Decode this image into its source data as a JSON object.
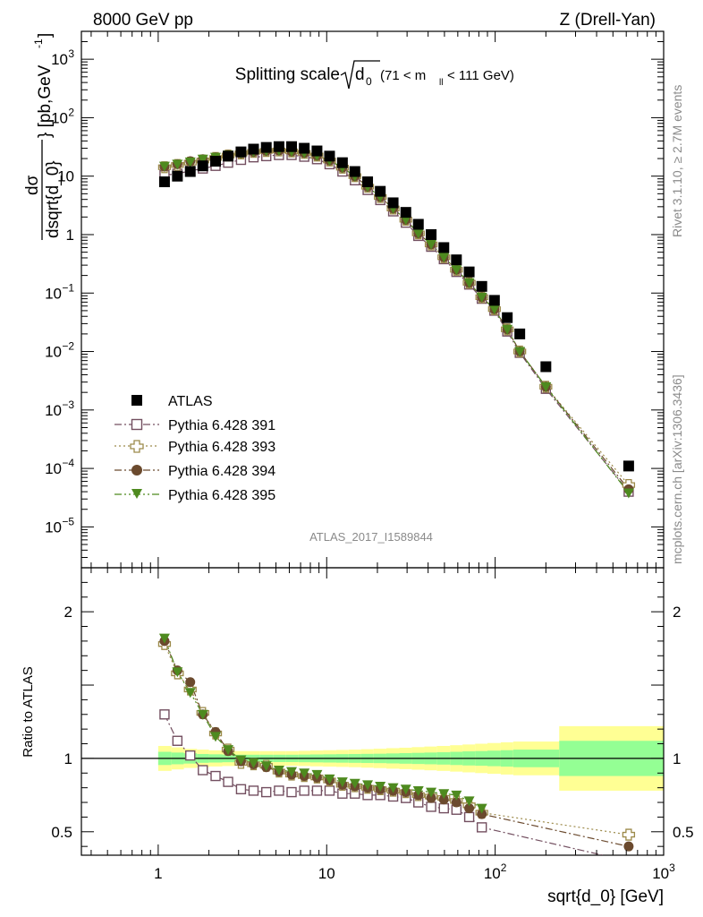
{
  "header": {
    "left": "8000 GeV pp",
    "right": "Z (Drell-Yan)"
  },
  "side_text": {
    "rivet": "Rivet 3.1.10, ≥ 2.7M events",
    "mcplots": "mcplots.cern.ch [arXiv:1306.3436]"
  },
  "analysis_id": "ATLAS_2017_I1589844",
  "colors": {
    "atlas": "#000000",
    "p391": "#734f60",
    "p393": "#9c8a4a",
    "p394": "#6b4a2e",
    "p395": "#4e8a1f",
    "band_stat": "#94ff94",
    "band_tot": "#ffff94"
  },
  "chart_data": [
    {
      "type": "scatter",
      "title": "Splitting scale √d0 (71 < m_ll < 111 GeV)",
      "title_parts": {
        "main": "Splitting scale",
        "sym": "d",
        "sub": "0",
        "range": "(71 < m",
        "range_sub": "ll",
        "range_end": " < 111 GeV)"
      },
      "ylabel": "dσ/dsqrt{d_0} [pb,GeV^-1]",
      "ylabel_parts": {
        "num": "dσ",
        "den": "dsqrt{d_0}",
        "unit_a": "} [pb,GeV",
        "unit_exp": "-1",
        "unit_b": "]"
      },
      "xscale": "log",
      "yscale": "log",
      "xlim": [
        0.35,
        1000
      ],
      "ylim": [
        2e-06,
        3000
      ],
      "legend": "bottom-left",
      "y_ticks": [
        {
          "v": 1000.0,
          "b": "10",
          "e": "3"
        },
        {
          "v": 100.0,
          "b": "10",
          "e": "2"
        },
        {
          "v": 10,
          "b": "10",
          "e": ""
        },
        {
          "v": 1,
          "b": "1",
          "e": ""
        },
        {
          "v": 0.1,
          "b": "10",
          "e": "−1"
        },
        {
          "v": 0.01,
          "b": "10",
          "e": "−2"
        },
        {
          "v": 0.001,
          "b": "10",
          "e": "−3"
        },
        {
          "v": 0.0001,
          "b": "10",
          "e": "−4"
        },
        {
          "v": 1e-05,
          "b": "10",
          "e": "−5"
        }
      ],
      "series": [
        {
          "name": "ATLAS",
          "marker": "square-filled",
          "x": [
            1.09,
            1.3,
            1.55,
            1.84,
            2.19,
            2.6,
            3.1,
            3.68,
            4.38,
            5.21,
            6.19,
            7.36,
            8.76,
            10.4,
            12.4,
            14.7,
            17.5,
            20.8,
            24.8,
            29.5,
            35.0,
            41.7,
            49.6,
            58.9,
            70.1,
            83.3,
            99,
            118,
            140,
            200,
            620
          ],
          "y": [
            8.0,
            10.0,
            12.0,
            15.0,
            18.0,
            22.0,
            26.0,
            29.0,
            31.0,
            32.0,
            32.0,
            30.0,
            27.0,
            22.0,
            17.0,
            12.0,
            8.0,
            5.5,
            3.5,
            2.4,
            1.5,
            1.0,
            0.6,
            0.37,
            0.23,
            0.13,
            0.075,
            0.038,
            0.02,
            0.0055,
            0.00011
          ]
        },
        {
          "name": "Pythia 6.428 391",
          "marker": "square-open",
          "x": [
            1.09,
            1.3,
            1.55,
            1.84,
            2.19,
            2.6,
            3.1,
            3.68,
            4.38,
            5.21,
            6.19,
            7.36,
            8.76,
            10.4,
            12.4,
            14.7,
            17.5,
            20.8,
            24.8,
            29.5,
            35.0,
            41.7,
            49.6,
            58.9,
            70.1,
            83.3,
            99,
            118,
            140,
            200,
            620
          ],
          "y": [
            10.4,
            11.0,
            12.3,
            13.5,
            15.0,
            17.0,
            19.0,
            21.0,
            22.0,
            23.0,
            23.0,
            21.5,
            19.5,
            16.0,
            12.0,
            8.5,
            5.8,
            3.9,
            2.5,
            1.6,
            0.95,
            0.62,
            0.38,
            0.23,
            0.14,
            0.08,
            0.05,
            0.022,
            0.0095,
            0.0023,
            4e-05
          ]
        },
        {
          "name": "Pythia 6.428 393",
          "marker": "cross-open",
          "x": [
            1.09,
            1.3,
            1.55,
            1.84,
            2.19,
            2.6,
            3.1,
            3.68,
            4.38,
            5.21,
            6.19,
            7.36,
            8.76,
            10.4,
            12.4,
            14.7,
            17.5,
            20.8,
            24.8,
            29.5,
            35.0,
            41.7,
            49.6,
            58.9,
            70.1,
            83.3,
            99,
            118,
            140,
            200,
            620
          ],
          "y": [
            14.2,
            15.5,
            17.0,
            18.5,
            20.5,
            22.5,
            24.5,
            26.0,
            27.0,
            27.5,
            26.5,
            25.0,
            22.5,
            18.5,
            14.0,
            10.0,
            6.6,
            4.4,
            2.8,
            1.8,
            1.05,
            0.68,
            0.41,
            0.25,
            0.15,
            0.085,
            0.053,
            0.024,
            0.01,
            0.0025,
            5.2e-05
          ]
        },
        {
          "name": "Pythia 6.428 394",
          "marker": "circle-filled",
          "x": [
            1.09,
            1.3,
            1.55,
            1.84,
            2.19,
            2.6,
            3.1,
            3.68,
            4.38,
            5.21,
            6.19,
            7.36,
            8.76,
            10.4,
            12.4,
            14.7,
            17.5,
            20.8,
            24.8,
            29.5,
            35.0,
            41.7,
            49.6,
            58.9,
            70.1,
            83.3,
            99,
            118,
            140,
            200,
            620
          ],
          "y": [
            14.5,
            16.0,
            18.0,
            19.5,
            21.0,
            23.0,
            24.5,
            26.0,
            27.0,
            27.5,
            26.5,
            25.0,
            22.5,
            18.5,
            14.0,
            10.0,
            6.6,
            4.4,
            2.8,
            1.8,
            1.05,
            0.68,
            0.41,
            0.25,
            0.15,
            0.085,
            0.053,
            0.024,
            0.01,
            0.0025,
            4.4e-05
          ]
        },
        {
          "name": "Pythia 6.428 395",
          "marker": "triangle-down-filled",
          "x": [
            1.09,
            1.3,
            1.55,
            1.84,
            2.19,
            2.6,
            3.1,
            3.68,
            4.38,
            5.21,
            6.19,
            7.36,
            8.76,
            10.4,
            12.4,
            14.7,
            17.5,
            20.8,
            24.8,
            29.5,
            35.0,
            41.7,
            49.6,
            58.9,
            70.1,
            83.3,
            99,
            118,
            140,
            200,
            620
          ],
          "y": [
            14.8,
            16.0,
            17.5,
            19.5,
            21.0,
            23.0,
            24.5,
            26.0,
            27.0,
            27.5,
            26.5,
            25.0,
            22.5,
            18.5,
            14.0,
            10.0,
            6.6,
            4.4,
            2.8,
            1.8,
            1.05,
            0.68,
            0.41,
            0.25,
            0.15,
            0.085,
            0.053,
            0.024,
            0.01,
            0.0025,
            3.8e-05
          ]
        }
      ]
    },
    {
      "type": "line",
      "ylabel": "Ratio to ATLAS",
      "xlabel": "sqrt{d_0} [GeV]",
      "xscale": "log",
      "xlim": [
        0.35,
        1000
      ],
      "ylim": [
        0.34,
        2.3
      ],
      "x_ticks": [
        {
          "v": 1,
          "b": "1",
          "e": ""
        },
        {
          "v": 10,
          "b": "10",
          "e": ""
        },
        {
          "v": 100,
          "b": "10",
          "e": "2"
        },
        {
          "v": 1000,
          "b": "10",
          "e": "3"
        }
      ],
      "y_ticks": [
        {
          "v": 0.5,
          "t": "0.5"
        },
        {
          "v": 1,
          "t": "1"
        },
        {
          "v": 2,
          "t": "2"
        }
      ],
      "bands": {
        "edges": [
          1.0,
          1.2,
          1.42,
          1.7,
          2.0,
          2.4,
          2.85,
          3.4,
          4.0,
          4.8,
          5.7,
          6.8,
          8.0,
          9.5,
          11.4,
          13.5,
          16.0,
          19.0,
          22.6,
          27.0,
          32.0,
          38.0,
          45.0,
          54.0,
          64.0,
          76.0,
          90.0,
          108.0,
          128.0,
          240.0,
          1000.0
        ],
        "tot": [
          0.085,
          0.075,
          0.065,
          0.06,
          0.055,
          0.052,
          0.05,
          0.05,
          0.05,
          0.05,
          0.05,
          0.052,
          0.054,
          0.056,
          0.058,
          0.06,
          0.063,
          0.066,
          0.07,
          0.073,
          0.077,
          0.081,
          0.085,
          0.09,
          0.095,
          0.1,
          0.105,
          0.11,
          0.115,
          0.22
        ],
        "stat": [
          0.045,
          0.04,
          0.035,
          0.03,
          0.028,
          0.026,
          0.025,
          0.025,
          0.025,
          0.025,
          0.025,
          0.026,
          0.027,
          0.028,
          0.029,
          0.03,
          0.031,
          0.032,
          0.034,
          0.036,
          0.038,
          0.04,
          0.042,
          0.045,
          0.048,
          0.05,
          0.053,
          0.056,
          0.06,
          0.12
        ]
      },
      "series": [
        {
          "name": "Pythia 6.428 391",
          "x": [
            1.09,
            1.3,
            1.55,
            1.84,
            2.19,
            2.6,
            3.1,
            3.68,
            4.38,
            5.21,
            6.19,
            7.36,
            8.76,
            10.4,
            12.4,
            14.7,
            17.5,
            20.8,
            24.8,
            29.5,
            35.0,
            41.7,
            49.6,
            58.9,
            70.1,
            83.3,
            620
          ],
          "y": [
            1.3,
            1.12,
            1.02,
            0.92,
            0.88,
            0.84,
            0.79,
            0.78,
            0.77,
            0.78,
            0.77,
            0.78,
            0.78,
            0.78,
            0.76,
            0.76,
            0.75,
            0.75,
            0.74,
            0.73,
            0.7,
            0.67,
            0.66,
            0.65,
            0.6,
            0.53,
            0.3
          ]
        },
        {
          "name": "Pythia 6.428 393",
          "x": [
            1.09,
            1.3,
            1.55,
            1.84,
            2.19,
            2.6,
            3.1,
            3.68,
            4.38,
            5.21,
            6.19,
            7.36,
            8.76,
            10.4,
            12.4,
            14.7,
            17.5,
            20.8,
            24.8,
            29.5,
            35.0,
            41.7,
            49.6,
            58.9,
            70.1,
            83.3,
            620
          ],
          "y": [
            1.78,
            1.58,
            1.47,
            1.31,
            1.17,
            1.06,
            0.97,
            0.96,
            0.95,
            0.91,
            0.89,
            0.88,
            0.87,
            0.85,
            0.82,
            0.81,
            0.8,
            0.79,
            0.78,
            0.77,
            0.75,
            0.74,
            0.73,
            0.71,
            0.68,
            0.63,
            0.48
          ]
        },
        {
          "name": "Pythia 6.428 394",
          "x": [
            1.09,
            1.3,
            1.55,
            1.84,
            2.19,
            2.6,
            3.1,
            3.68,
            4.38,
            5.21,
            6.19,
            7.36,
            8.76,
            10.4,
            12.4,
            14.7,
            17.5,
            20.8,
            24.8,
            29.5,
            35.0,
            41.7,
            49.6,
            58.9,
            70.1,
            83.3,
            620
          ],
          "y": [
            1.8,
            1.6,
            1.52,
            1.3,
            1.18,
            1.05,
            0.98,
            0.96,
            0.94,
            0.91,
            0.89,
            0.88,
            0.87,
            0.85,
            0.82,
            0.81,
            0.8,
            0.79,
            0.78,
            0.77,
            0.75,
            0.73,
            0.72,
            0.7,
            0.66,
            0.62,
            0.4
          ]
        },
        {
          "name": "Pythia 6.428 395",
          "x": [
            1.09,
            1.3,
            1.55,
            1.84,
            2.19,
            2.6,
            3.1,
            3.68,
            4.38,
            5.21,
            6.19,
            7.36,
            8.76,
            10.4,
            12.4,
            14.7,
            17.5,
            20.8,
            24.8,
            29.5,
            35.0,
            41.7,
            49.6,
            58.9,
            70.1,
            83.3
          ],
          "y": [
            1.82,
            1.59,
            1.45,
            1.3,
            1.15,
            1.06,
            0.99,
            0.97,
            0.95,
            0.92,
            0.91,
            0.9,
            0.89,
            0.86,
            0.84,
            0.83,
            0.82,
            0.81,
            0.8,
            0.79,
            0.78,
            0.77,
            0.76,
            0.75,
            0.71,
            0.66
          ]
        }
      ]
    }
  ]
}
